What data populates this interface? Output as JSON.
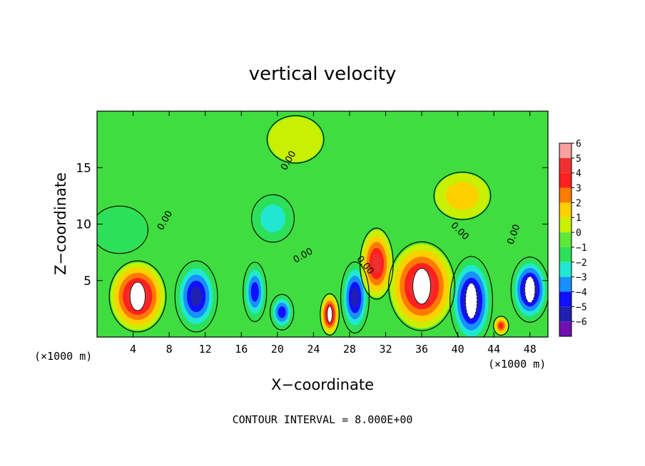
{
  "chart_data": {
    "type": "heatmap",
    "title": "vertical velocity",
    "xlabel": "X−coordinate",
    "ylabel": "Z−coordinate",
    "x_unit_left": "(×1000 m)",
    "x_unit_right": "(×1000 m)",
    "footer": "CONTOUR INTERVAL = 8.000E+00",
    "xlim": [
      0,
      50
    ],
    "ylim": [
      0,
      20
    ],
    "x_ticks": [
      4,
      8,
      12,
      16,
      20,
      24,
      28,
      32,
      36,
      40,
      44,
      48
    ],
    "y_ticks": [
      5,
      10,
      15
    ],
    "colorbar": {
      "levels": [
        6,
        5,
        4,
        3,
        2,
        1,
        0,
        -1,
        -2,
        -3,
        -4,
        -5,
        -6
      ],
      "level_labels": [
        "6",
        "5",
        "4",
        "3",
        "2",
        "1",
        "0",
        "−1",
        "−2",
        "−3",
        "−4",
        "−5",
        "−6"
      ],
      "colors": [
        "#f7a1a1",
        "#f03030",
        "#ff2020",
        "#ff7a00",
        "#ffd000",
        "#c8f000",
        "#5ee83a",
        "#2de05a",
        "#20e8d0",
        "#1890ff",
        "#1010ff",
        "#2020b0",
        "#7010b0"
      ]
    },
    "contour_labels": [
      {
        "text": "0.00",
        "x": 21.5,
        "y": 15.5,
        "angle": -60
      },
      {
        "text": "0.00",
        "x": 7.8,
        "y": 10.2,
        "angle": -60
      },
      {
        "text": "0.00",
        "x": 23.0,
        "y": 7.0,
        "angle": -30
      },
      {
        "text": "0.00",
        "x": 29.5,
        "y": 6.2,
        "angle": 50
      },
      {
        "text": "0.00",
        "x": 40.0,
        "y": 9.2,
        "angle": 45
      },
      {
        "text": "0.00",
        "x": 46.5,
        "y": 9.0,
        "angle": -70
      }
    ],
    "cells": [
      {
        "x": 4.5,
        "y": 3.6,
        "w": 6.0,
        "h": 6.0,
        "v": 6
      },
      {
        "x": 11.0,
        "y": 3.6,
        "w": 4.5,
        "h": 6.0,
        "v": -5
      },
      {
        "x": 17.5,
        "y": 4.0,
        "w": 2.5,
        "h": 5.0,
        "v": -4
      },
      {
        "x": 20.5,
        "y": 2.2,
        "w": 2.5,
        "h": 3.0,
        "v": -4
      },
      {
        "x": 25.8,
        "y": 2.0,
        "w": 2.0,
        "h": 3.5,
        "v": 6
      },
      {
        "x": 28.6,
        "y": 3.5,
        "w": 3.0,
        "h": 6.0,
        "v": -5
      },
      {
        "x": 31.0,
        "y": 6.5,
        "w": 3.5,
        "h": 6.0,
        "v": 5
      },
      {
        "x": 36.0,
        "y": 4.5,
        "w": 7.0,
        "h": 7.5,
        "v": 6
      },
      {
        "x": 41.5,
        "y": 3.2,
        "w": 4.5,
        "h": 7.5,
        "v": -6
      },
      {
        "x": 44.8,
        "y": 1.0,
        "w": 1.6,
        "h": 1.6,
        "v": 4
      },
      {
        "x": 48.0,
        "y": 4.2,
        "w": 4.0,
        "h": 5.5,
        "v": -6
      },
      {
        "x": 19.5,
        "y": 10.5,
        "w": 4.5,
        "h": 4.0,
        "v": -2
      },
      {
        "x": 2.5,
        "y": 9.5,
        "w": 6.0,
        "h": 4.0,
        "v": -1
      },
      {
        "x": 22.0,
        "y": 17.5,
        "w": 6.0,
        "h": 4.0,
        "v": 1
      },
      {
        "x": 40.5,
        "y": 12.5,
        "w": 6.0,
        "h": 4.0,
        "v": 2
      }
    ]
  }
}
